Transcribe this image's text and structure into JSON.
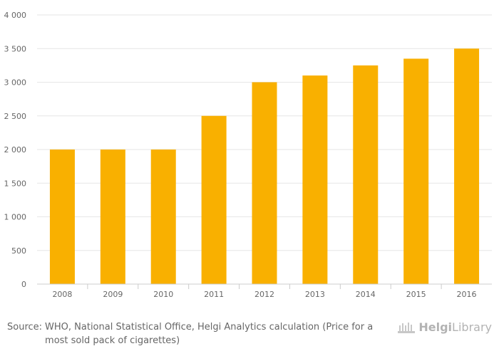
{
  "chart_data": {
    "type": "bar",
    "categories": [
      "2008",
      "2009",
      "2010",
      "2011",
      "2012",
      "2013",
      "2014",
      "2015",
      "2016"
    ],
    "values": [
      2000,
      2000,
      2000,
      2500,
      3000,
      3100,
      3250,
      3350,
      3500
    ],
    "y_ticks": [
      "0",
      "500",
      "1 000",
      "1 500",
      "2 000",
      "2 500",
      "3 000",
      "3 500",
      "4 000"
    ],
    "ylim": [
      0,
      4000
    ],
    "grid": true,
    "bar_color": "#F9B000"
  },
  "footer": {
    "source_label": "Source:",
    "source_text": "WHO, National Statistical Office, Helgi Analytics calculation (Price for a most sold pack of cigarettes)"
  },
  "brand": {
    "name_bold": "Helgi",
    "name_rest": "Library"
  }
}
